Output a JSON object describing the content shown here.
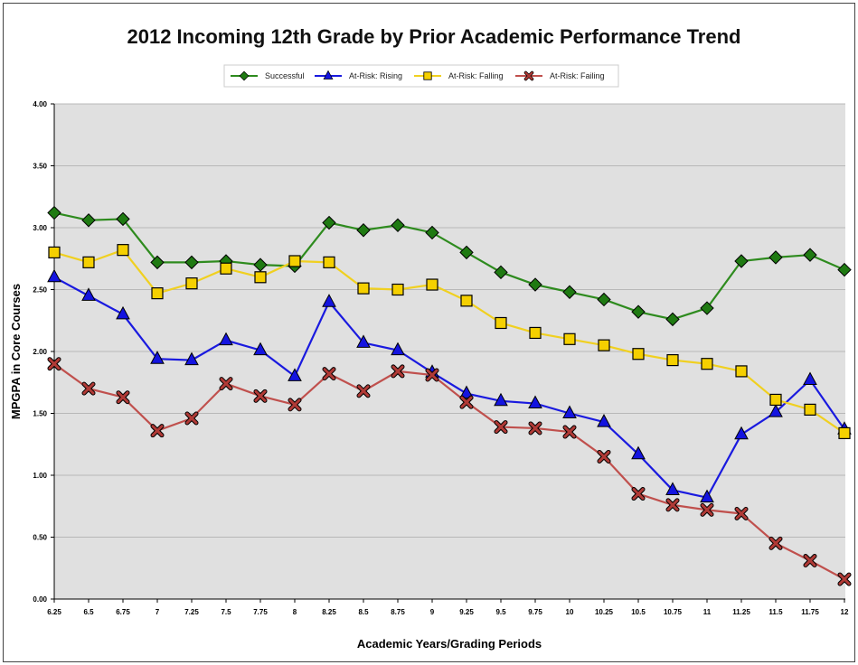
{
  "chart_data": {
    "type": "line",
    "title": "2012 Incoming 12th Grade by Prior Academic Performance Trend",
    "xlabel": "Academic Years/Grading Periods",
    "ylabel": "MPGPA in Core Courses",
    "ylim": [
      0,
      4
    ],
    "yticks": [
      "0.00",
      "0.50",
      "1.00",
      "1.50",
      "2.00",
      "2.50",
      "3.00",
      "3.50",
      "4.00"
    ],
    "legend_position": "top-center",
    "grid": true,
    "categories": [
      "6.25",
      "6.5",
      "6.75",
      "7",
      "7.25",
      "7.5",
      "7.75",
      "8",
      "8.25",
      "8.5",
      "8.75",
      "9",
      "9.25",
      "9.5",
      "9.75",
      "10",
      "10.25",
      "10.5",
      "10.75",
      "11",
      "11.25",
      "11.5",
      "11.75",
      "12"
    ],
    "series": [
      {
        "name": "Successful",
        "color": "#2e8b1e",
        "marker": "diamond",
        "fill": "#1f7a12",
        "values": [
          3.12,
          3.06,
          3.07,
          2.72,
          2.72,
          2.73,
          2.7,
          2.69,
          3.04,
          2.98,
          3.02,
          2.96,
          2.8,
          2.64,
          2.54,
          2.48,
          2.42,
          2.32,
          2.26,
          2.35,
          2.73,
          2.76,
          2.78,
          2.66
        ]
      },
      {
        "name": "At-Risk: Rising",
        "color": "#1a1adf",
        "marker": "triangle",
        "fill": "#1414e0",
        "values": [
          2.6,
          2.45,
          2.3,
          1.94,
          1.93,
          2.09,
          2.01,
          1.8,
          2.4,
          2.07,
          2.01,
          1.83,
          1.66,
          1.6,
          1.58,
          1.5,
          1.43,
          1.17,
          0.88,
          0.82,
          1.33,
          1.51,
          1.77,
          1.37
        ]
      },
      {
        "name": "At-Risk: Falling",
        "color": "#f0d020",
        "marker": "square",
        "fill": "#f5d000",
        "values": [
          2.8,
          2.72,
          2.82,
          2.47,
          2.55,
          2.67,
          2.6,
          2.73,
          2.72,
          2.51,
          2.5,
          2.54,
          2.41,
          2.23,
          2.15,
          2.1,
          2.05,
          1.98,
          1.93,
          1.9,
          1.84,
          1.61,
          1.53,
          1.34
        ]
      },
      {
        "name": "At-Risk: Failing",
        "color": "#c0504d",
        "marker": "x",
        "fill": "#b03a36",
        "values": [
          1.9,
          1.7,
          1.63,
          1.36,
          1.46,
          1.74,
          1.64,
          1.57,
          1.82,
          1.68,
          1.84,
          1.81,
          1.59,
          1.39,
          1.38,
          1.35,
          1.15,
          0.85,
          0.76,
          0.72,
          0.69,
          0.45,
          0.31,
          0.16
        ]
      }
    ]
  }
}
